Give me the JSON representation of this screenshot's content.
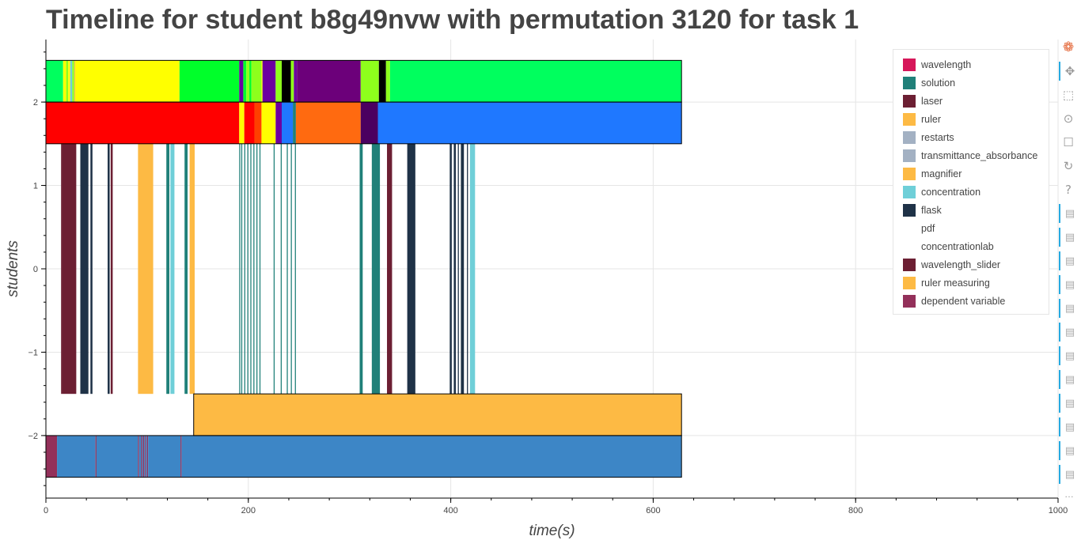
{
  "chart_data": {
    "type": "timeline",
    "title": "Timeline for student b8g49nvw with permutation 3120 for task 1",
    "xlabel": "time(s)",
    "ylabel": "students",
    "xlim": [
      0,
      1000
    ],
    "ylim": [
      -2.75,
      2.75
    ],
    "x_ticks": [
      0,
      200,
      400,
      600,
      800,
      1000
    ],
    "x_tick_labels": [
      "0",
      "200",
      "400",
      "600",
      "800",
      "1000"
    ],
    "y_ticks": [
      2,
      1,
      0,
      -1,
      -2
    ],
    "y_tick_labels": [
      "2",
      "1",
      "0",
      "−1",
      "−2"
    ],
    "grid": true,
    "legend_position": "top-right",
    "legend": [
      {
        "label": "wavelength",
        "color": "#d6175a"
      },
      {
        "label": "solution",
        "color": "#208079"
      },
      {
        "label": "laser",
        "color": "#6c1f33"
      },
      {
        "label": "ruler",
        "color": "#fdba44"
      },
      {
        "label": "restarts",
        "color": "#a3b1c3"
      },
      {
        "label": "transmittance_absorbance",
        "color": "#a3b1c3"
      },
      {
        "label": "magnifier",
        "color": "#fdba44"
      },
      {
        "label": "concentration",
        "color": "#6fcfd8"
      },
      {
        "label": "flask",
        "color": "#1f3247"
      },
      {
        "label": "pdf",
        "color": "#ffffff"
      },
      {
        "label": "concentrationlab",
        "color": "#ffffff"
      },
      {
        "label": "wavelength_slider",
        "color": "#6c1f33"
      },
      {
        "label": "ruler measuring",
        "color": "#fdba44"
      },
      {
        "label": "dependent variable",
        "color": "#93305a"
      }
    ],
    "rows": [
      {
        "name": "row1",
        "y_top": 2.5,
        "y_bottom": 2.0,
        "segments": [
          {
            "start": 0,
            "end": 17,
            "color": "#00ff5e"
          },
          {
            "start": 17,
            "end": 20,
            "color": "#ffff00"
          },
          {
            "start": 20,
            "end": 22,
            "color": "#8eff1c"
          },
          {
            "start": 22,
            "end": 24,
            "color": "#ffff00"
          },
          {
            "start": 24,
            "end": 26,
            "color": "#6fcfd8"
          },
          {
            "start": 26,
            "end": 28,
            "color": "#8eff1c"
          },
          {
            "start": 28,
            "end": 29,
            "color": "#fdba44"
          },
          {
            "start": 29,
            "end": 132,
            "color": "#ffff00"
          },
          {
            "start": 132,
            "end": 191,
            "color": "#00ff2a"
          },
          {
            "start": 191,
            "end": 195,
            "color": "#6c00a0"
          },
          {
            "start": 195,
            "end": 198,
            "color": "#00ff2a"
          },
          {
            "start": 198,
            "end": 201,
            "color": "#8eff1c"
          },
          {
            "start": 201,
            "end": 203,
            "color": "#00ff2a"
          },
          {
            "start": 203,
            "end": 213,
            "color": "#8eff1c"
          },
          {
            "start": 213,
            "end": 214,
            "color": "#ffff00"
          },
          {
            "start": 214,
            "end": 227,
            "color": "#6c00a0"
          },
          {
            "start": 227,
            "end": 233,
            "color": "#8eff1c"
          },
          {
            "start": 233,
            "end": 242,
            "color": "#000000"
          },
          {
            "start": 242,
            "end": 245,
            "color": "#8eff1c"
          },
          {
            "start": 245,
            "end": 248,
            "color": "#6c00a0"
          },
          {
            "start": 248,
            "end": 311,
            "color": "#6c007a"
          },
          {
            "start": 311,
            "end": 329,
            "color": "#8eff1c"
          },
          {
            "start": 329,
            "end": 336,
            "color": "#000000"
          },
          {
            "start": 336,
            "end": 340,
            "color": "#8eff1c"
          },
          {
            "start": 340,
            "end": 628,
            "color": "#00ff5e"
          }
        ]
      },
      {
        "name": "row2",
        "y_top": 2.0,
        "y_bottom": 1.5,
        "segments": [
          {
            "start": 0,
            "end": 191,
            "color": "#ff0000"
          },
          {
            "start": 191,
            "end": 196,
            "color": "#ffff00"
          },
          {
            "start": 196,
            "end": 206,
            "color": "#ff0000"
          },
          {
            "start": 206,
            "end": 213,
            "color": "#ff4000"
          },
          {
            "start": 213,
            "end": 227,
            "color": "#ffff00"
          },
          {
            "start": 227,
            "end": 233,
            "color": "#6c00a0"
          },
          {
            "start": 233,
            "end": 244,
            "color": "#1f78ff"
          },
          {
            "start": 244,
            "end": 247,
            "color": "#208079"
          },
          {
            "start": 247,
            "end": 311,
            "color": "#ff6a10"
          },
          {
            "start": 311,
            "end": 328,
            "color": "#4b0060"
          },
          {
            "start": 328,
            "end": 628,
            "color": "#1f78ff"
          }
        ]
      },
      {
        "name": "row3",
        "y_top": 1.5,
        "y_bottom": -1.5,
        "segments": [
          {
            "start": 15,
            "end": 16,
            "color": "#6c1f33"
          },
          {
            "start": 16,
            "end": 30,
            "color": "#6c1f33"
          },
          {
            "start": 34,
            "end": 42,
            "color": "#1f3247"
          },
          {
            "start": 44,
            "end": 46,
            "color": "#1f3247"
          },
          {
            "start": 61,
            "end": 63,
            "color": "#1f3247"
          },
          {
            "start": 64,
            "end": 66,
            "color": "#6c1f33"
          },
          {
            "start": 91,
            "end": 106,
            "color": "#fdba44"
          },
          {
            "start": 119,
            "end": 122,
            "color": "#208079"
          },
          {
            "start": 123,
            "end": 127,
            "color": "#6fcfd8"
          },
          {
            "start": 137,
            "end": 140,
            "color": "#208079"
          },
          {
            "start": 142,
            "end": 147,
            "color": "#fdba44"
          },
          {
            "start": 191,
            "end": 192,
            "color": "#208079"
          },
          {
            "start": 193,
            "end": 194,
            "color": "#208079"
          },
          {
            "start": 196,
            "end": 197,
            "color": "#208079"
          },
          {
            "start": 199,
            "end": 200,
            "color": "#208079"
          },
          {
            "start": 202,
            "end": 203,
            "color": "#208079"
          },
          {
            "start": 205,
            "end": 206,
            "color": "#208079"
          },
          {
            "start": 208,
            "end": 209,
            "color": "#208079"
          },
          {
            "start": 211,
            "end": 212,
            "color": "#208079"
          },
          {
            "start": 225,
            "end": 226,
            "color": "#208079"
          },
          {
            "start": 232,
            "end": 233,
            "color": "#208079"
          },
          {
            "start": 238,
            "end": 239,
            "color": "#208079"
          },
          {
            "start": 242,
            "end": 243,
            "color": "#208079"
          },
          {
            "start": 246,
            "end": 247,
            "color": "#208079"
          },
          {
            "start": 310,
            "end": 313,
            "color": "#208079"
          },
          {
            "start": 322,
            "end": 330,
            "color": "#208079"
          },
          {
            "start": 337,
            "end": 342,
            "color": "#6c1f33"
          },
          {
            "start": 357,
            "end": 365,
            "color": "#1f3247"
          },
          {
            "start": 399,
            "end": 401,
            "color": "#1f3247"
          },
          {
            "start": 403,
            "end": 405,
            "color": "#1f3247"
          },
          {
            "start": 407,
            "end": 408,
            "color": "#1f3247"
          },
          {
            "start": 410,
            "end": 413,
            "color": "#1f3247"
          },
          {
            "start": 416,
            "end": 417,
            "color": "#1f3247"
          },
          {
            "start": 419,
            "end": 424,
            "color": "#6fcfd8"
          }
        ]
      },
      {
        "name": "row4",
        "y_top": -1.5,
        "y_bottom": -2.0,
        "segments": [
          {
            "start": 146,
            "end": 628,
            "color": "#fdba44"
          }
        ]
      },
      {
        "name": "row5",
        "y_top": -2.0,
        "y_bottom": -2.5,
        "segments": [
          {
            "start": 0,
            "end": 11,
            "color": "#93305a"
          },
          {
            "start": 11,
            "end": 49,
            "color": "#3d86c6"
          },
          {
            "start": 49,
            "end": 50,
            "color": "#93305a"
          },
          {
            "start": 50,
            "end": 91,
            "color": "#3d86c6"
          },
          {
            "start": 91,
            "end": 92,
            "color": "#93305a"
          },
          {
            "start": 92,
            "end": 94,
            "color": "#3d86c6"
          },
          {
            "start": 94,
            "end": 95,
            "color": "#93305a"
          },
          {
            "start": 95,
            "end": 96,
            "color": "#3d86c6"
          },
          {
            "start": 96,
            "end": 97,
            "color": "#93305a"
          },
          {
            "start": 97,
            "end": 98,
            "color": "#3d86c6"
          },
          {
            "start": 98,
            "end": 99,
            "color": "#93305a"
          },
          {
            "start": 99,
            "end": 100,
            "color": "#3d86c6"
          },
          {
            "start": 100,
            "end": 101,
            "color": "#93305a"
          },
          {
            "start": 101,
            "end": 133,
            "color": "#3d86c6"
          },
          {
            "start": 133,
            "end": 134,
            "color": "#93305a"
          },
          {
            "start": 134,
            "end": 628,
            "color": "#3d86c6"
          }
        ]
      }
    ]
  },
  "toolbar": {
    "tools": [
      {
        "name": "bokeh-logo-icon",
        "glyph": "❁",
        "active": false
      },
      {
        "name": "pan-icon",
        "glyph": "✥",
        "active": true
      },
      {
        "name": "box-zoom-icon",
        "glyph": "⬚",
        "active": false
      },
      {
        "name": "wheel-zoom-icon",
        "glyph": "⊙",
        "active": false
      },
      {
        "name": "save-icon",
        "glyph": "☐",
        "active": false
      },
      {
        "name": "reset-icon",
        "glyph": "↻",
        "active": false
      },
      {
        "name": "help-icon",
        "glyph": "?",
        "active": false
      }
    ],
    "hover_tool_count": 12,
    "hover_glyph": "▤",
    "more_glyph": "…"
  }
}
